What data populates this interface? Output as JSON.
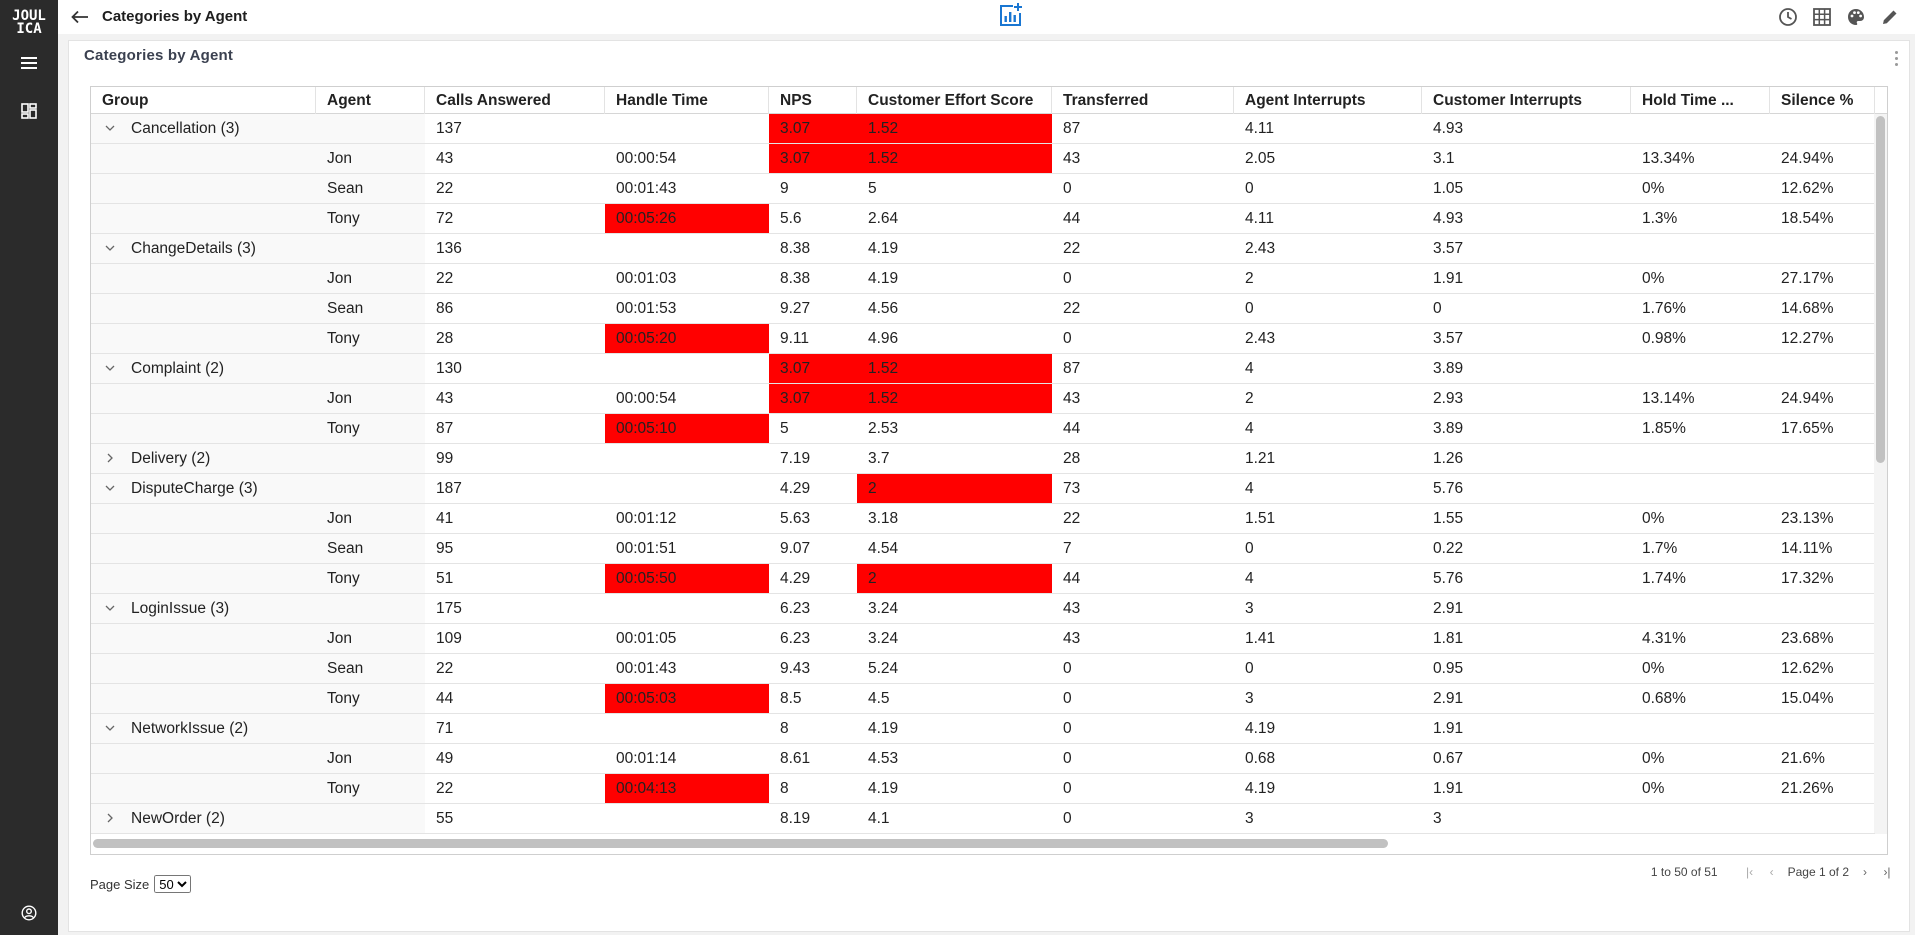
{
  "app": {
    "logo_line1": "JOUL",
    "logo_line2": "ICA",
    "title": "Categories by Agent"
  },
  "panel": {
    "title": "Categories by Agent"
  },
  "columns": [
    "Group",
    "Agent",
    "Calls Answered",
    "Handle Time",
    "NPS",
    "Customer Effort Score",
    "Transferred",
    "Agent Interrupts",
    "Customer Interrupts",
    "Hold Time ...",
    "Silence %"
  ],
  "rows": [
    {
      "type": "group",
      "label": "Cancellation (3)",
      "expanded": true,
      "calls": "137",
      "handle": "",
      "nps": "3.07",
      "ces": "1.52",
      "transferred": "87",
      "agent_int": "4.11",
      "cust_int": "4.93",
      "hold": "",
      "silence": "",
      "red": [
        "nps",
        "ces"
      ]
    },
    {
      "type": "child",
      "agent": "Jon",
      "calls": "43",
      "handle": "00:00:54",
      "nps": "3.07",
      "ces": "1.52",
      "transferred": "43",
      "agent_int": "2.05",
      "cust_int": "3.1",
      "hold": "13.34%",
      "silence": "24.94%",
      "red": [
        "nps",
        "ces"
      ]
    },
    {
      "type": "child",
      "agent": "Sean",
      "calls": "22",
      "handle": "00:01:43",
      "nps": "9",
      "ces": "5",
      "transferred": "0",
      "agent_int": "0",
      "cust_int": "1.05",
      "hold": "0%",
      "silence": "12.62%",
      "red": []
    },
    {
      "type": "child",
      "agent": "Tony",
      "calls": "72",
      "handle": "00:05:26",
      "nps": "5.6",
      "ces": "2.64",
      "transferred": "44",
      "agent_int": "4.11",
      "cust_int": "4.93",
      "hold": "1.3%",
      "silence": "18.54%",
      "red": [
        "handle"
      ]
    },
    {
      "type": "group",
      "label": "ChangeDetails (3)",
      "expanded": true,
      "calls": "136",
      "handle": "",
      "nps": "8.38",
      "ces": "4.19",
      "transferred": "22",
      "agent_int": "2.43",
      "cust_int": "3.57",
      "hold": "",
      "silence": "",
      "red": []
    },
    {
      "type": "child",
      "agent": "Jon",
      "calls": "22",
      "handle": "00:01:03",
      "nps": "8.38",
      "ces": "4.19",
      "transferred": "0",
      "agent_int": "2",
      "cust_int": "1.91",
      "hold": "0%",
      "silence": "27.17%",
      "red": []
    },
    {
      "type": "child",
      "agent": "Sean",
      "calls": "86",
      "handle": "00:01:53",
      "nps": "9.27",
      "ces": "4.56",
      "transferred": "22",
      "agent_int": "0",
      "cust_int": "0",
      "hold": "1.76%",
      "silence": "14.68%",
      "red": []
    },
    {
      "type": "child",
      "agent": "Tony",
      "calls": "28",
      "handle": "00:05:20",
      "nps": "9.11",
      "ces": "4.96",
      "transferred": "0",
      "agent_int": "2.43",
      "cust_int": "3.57",
      "hold": "0.98%",
      "silence": "12.27%",
      "red": [
        "handle"
      ]
    },
    {
      "type": "group",
      "label": "Complaint (2)",
      "expanded": true,
      "calls": "130",
      "handle": "",
      "nps": "3.07",
      "ces": "1.52",
      "transferred": "87",
      "agent_int": "4",
      "cust_int": "3.89",
      "hold": "",
      "silence": "",
      "red": [
        "nps",
        "ces"
      ]
    },
    {
      "type": "child",
      "agent": "Jon",
      "calls": "43",
      "handle": "00:00:54",
      "nps": "3.07",
      "ces": "1.52",
      "transferred": "43",
      "agent_int": "2",
      "cust_int": "2.93",
      "hold": "13.14%",
      "silence": "24.94%",
      "red": [
        "nps",
        "ces"
      ]
    },
    {
      "type": "child",
      "agent": "Tony",
      "calls": "87",
      "handle": "00:05:10",
      "nps": "5",
      "ces": "2.53",
      "transferred": "44",
      "agent_int": "4",
      "cust_int": "3.89",
      "hold": "1.85%",
      "silence": "17.65%",
      "red": [
        "handle"
      ]
    },
    {
      "type": "group",
      "label": "Delivery (2)",
      "expanded": false,
      "calls": "99",
      "handle": "",
      "nps": "7.19",
      "ces": "3.7",
      "transferred": "28",
      "agent_int": "1.21",
      "cust_int": "1.26",
      "hold": "",
      "silence": "",
      "red": []
    },
    {
      "type": "group",
      "label": "DisputeCharge (3)",
      "expanded": true,
      "calls": "187",
      "handle": "",
      "nps": "4.29",
      "ces": "2",
      "transferred": "73",
      "agent_int": "4",
      "cust_int": "5.76",
      "hold": "",
      "silence": "",
      "red": [
        "ces"
      ]
    },
    {
      "type": "child",
      "agent": "Jon",
      "calls": "41",
      "handle": "00:01:12",
      "nps": "5.63",
      "ces": "3.18",
      "transferred": "22",
      "agent_int": "1.51",
      "cust_int": "1.55",
      "hold": "0%",
      "silence": "23.13%",
      "red": []
    },
    {
      "type": "child",
      "agent": "Sean",
      "calls": "95",
      "handle": "00:01:51",
      "nps": "9.07",
      "ces": "4.54",
      "transferred": "7",
      "agent_int": "0",
      "cust_int": "0.22",
      "hold": "1.7%",
      "silence": "14.11%",
      "red": []
    },
    {
      "type": "child",
      "agent": "Tony",
      "calls": "51",
      "handle": "00:05:50",
      "nps": "4.29",
      "ces": "2",
      "transferred": "44",
      "agent_int": "4",
      "cust_int": "5.76",
      "hold": "1.74%",
      "silence": "17.32%",
      "red": [
        "handle",
        "ces"
      ]
    },
    {
      "type": "group",
      "label": "LoginIssue (3)",
      "expanded": true,
      "calls": "175",
      "handle": "",
      "nps": "6.23",
      "ces": "3.24",
      "transferred": "43",
      "agent_int": "3",
      "cust_int": "2.91",
      "hold": "",
      "silence": "",
      "red": []
    },
    {
      "type": "child",
      "agent": "Jon",
      "calls": "109",
      "handle": "00:01:05",
      "nps": "6.23",
      "ces": "3.24",
      "transferred": "43",
      "agent_int": "1.41",
      "cust_int": "1.81",
      "hold": "4.31%",
      "silence": "23.68%",
      "red": []
    },
    {
      "type": "child",
      "agent": "Sean",
      "calls": "22",
      "handle": "00:01:43",
      "nps": "9.43",
      "ces": "5.24",
      "transferred": "0",
      "agent_int": "0",
      "cust_int": "0.95",
      "hold": "0%",
      "silence": "12.62%",
      "red": []
    },
    {
      "type": "child",
      "agent": "Tony",
      "calls": "44",
      "handle": "00:05:03",
      "nps": "8.5",
      "ces": "4.5",
      "transferred": "0",
      "agent_int": "3",
      "cust_int": "2.91",
      "hold": "0.68%",
      "silence": "15.04%",
      "red": [
        "handle"
      ]
    },
    {
      "type": "group",
      "label": "NetworkIssue (2)",
      "expanded": true,
      "calls": "71",
      "handle": "",
      "nps": "8",
      "ces": "4.19",
      "transferred": "0",
      "agent_int": "4.19",
      "cust_int": "1.91",
      "hold": "",
      "silence": "",
      "red": []
    },
    {
      "type": "child",
      "agent": "Jon",
      "calls": "49",
      "handle": "00:01:14",
      "nps": "8.61",
      "ces": "4.53",
      "transferred": "0",
      "agent_int": "0.68",
      "cust_int": "0.67",
      "hold": "0%",
      "silence": "21.6%",
      "red": []
    },
    {
      "type": "child",
      "agent": "Tony",
      "calls": "22",
      "handle": "00:04:13",
      "nps": "8",
      "ces": "4.19",
      "transferred": "0",
      "agent_int": "4.19",
      "cust_int": "1.91",
      "hold": "0%",
      "silence": "21.26%",
      "red": [
        "handle"
      ]
    },
    {
      "type": "group",
      "label": "NewOrder (2)",
      "expanded": false,
      "calls": "55",
      "handle": "",
      "nps": "8.19",
      "ces": "4.1",
      "transferred": "0",
      "agent_int": "3",
      "cust_int": "3",
      "hold": "",
      "silence": "",
      "red": []
    }
  ],
  "footer": {
    "page_size_label": "Page Size",
    "page_size_value": "50",
    "row_summary": "1 to 50 of 51",
    "page_label": "Page 1 of 2"
  },
  "colors": {
    "highlight": "#ff0000",
    "rail": "#2b2b2b",
    "accent": "#1976d2"
  }
}
